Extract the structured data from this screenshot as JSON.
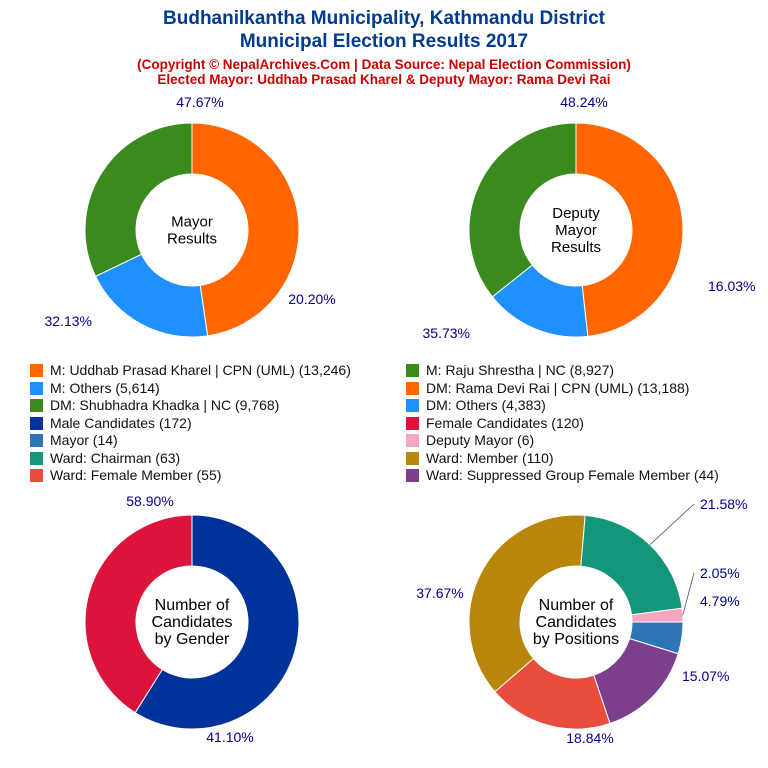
{
  "header": {
    "title_line1": "Budhanilkantha Municipality, Kathmandu District",
    "title_line2": "Municipal Election Results 2017",
    "subtitle_line1": "(Copyright © NepalArchives.Com | Data Source: Nepal Election Commission)",
    "subtitle_line2": "Elected Mayor: Uddhab Prasad Kharel & Deputy Mayor: Rama Devi Rai"
  },
  "colors": {
    "orange": "#ff6600",
    "blue": "#1e90ff",
    "green": "#3a8a1e",
    "navy": "#003399",
    "crimson": "#dc143c",
    "steel": "#2e75b6",
    "pink": "#f4a6c0",
    "teal": "#14967a",
    "goldenrod": "#b8860b",
    "tomato": "#e74c3c",
    "purple": "#7b3f8e",
    "label": "#00008b"
  },
  "legend": [
    {
      "label": "M: Uddhab Prasad Kharel | CPN (UML) (13,246)",
      "color": "#ff6600"
    },
    {
      "label": "M: Raju Shrestha | NC (8,927)",
      "color": "#3a8a1e"
    },
    {
      "label": "M: Others (5,614)",
      "color": "#1e90ff"
    },
    {
      "label": "DM: Rama Devi Rai | CPN (UML) (13,188)",
      "color": "#ff6600"
    },
    {
      "label": "DM: Shubhadra Khadka | NC (9,768)",
      "color": "#3a8a1e"
    },
    {
      "label": "DM: Others (4,383)",
      "color": "#1e90ff"
    },
    {
      "label": "Male Candidates (172)",
      "color": "#003399"
    },
    {
      "label": "Female Candidates (120)",
      "color": "#dc143c"
    },
    {
      "label": "Mayor (14)",
      "color": "#2e75b6"
    },
    {
      "label": "Deputy Mayor (6)",
      "color": "#f4a6c0"
    },
    {
      "label": "Ward: Chairman (63)",
      "color": "#14967a"
    },
    {
      "label": "Ward: Member (110)",
      "color": "#b8860b"
    },
    {
      "label": "Ward: Female Member (55)",
      "color": "#e74c3c"
    },
    {
      "label": "Ward: Suppressed Group Female Member (44)",
      "color": "#7b3f8e"
    }
  ],
  "chart_data": [
    {
      "type": "pie",
      "center_label": [
        "Mayor",
        "Results"
      ],
      "slices": [
        {
          "name": "M: Uddhab Prasad Kharel | CPN (UML)",
          "value": 13246,
          "label": "47.67%",
          "color": "#ff6600"
        },
        {
          "name": "M: Others",
          "value": 5614,
          "label": "20.20%",
          "color": "#1e90ff"
        },
        {
          "name": "M: Raju Shrestha | NC",
          "value": 8927,
          "label": "32.13%",
          "color": "#3a8a1e"
        }
      ]
    },
    {
      "type": "pie",
      "center_label": [
        "Deputy",
        "Mayor",
        "Results"
      ],
      "slices": [
        {
          "name": "DM: Rama Devi Rai | CPN (UML)",
          "value": 13188,
          "label": "48.24%",
          "color": "#ff6600"
        },
        {
          "name": "DM: Others",
          "value": 4383,
          "label": "16.03%",
          "color": "#1e90ff"
        },
        {
          "name": "DM: Shubhadra Khadka | NC",
          "value": 9768,
          "label": "35.73%",
          "color": "#3a8a1e"
        }
      ]
    },
    {
      "type": "pie",
      "center_label": [
        "Number of",
        "Candidates",
        "by Gender"
      ],
      "slices": [
        {
          "name": "Male Candidates",
          "value": 172,
          "label": "58.90%",
          "color": "#003399"
        },
        {
          "name": "Female Candidates",
          "value": 120,
          "label": "41.10%",
          "color": "#dc143c"
        }
      ]
    },
    {
      "type": "pie",
      "center_label": [
        "Number of",
        "Candidates",
        "by Positions"
      ],
      "slices": [
        {
          "name": "Mayor",
          "value": 14,
          "label": "4.79%",
          "color": "#2e75b6"
        },
        {
          "name": "Ward: Suppressed Group Female Member",
          "value": 44,
          "label": "15.07%",
          "color": "#7b3f8e"
        },
        {
          "name": "Ward: Female Member",
          "value": 55,
          "label": "18.84%",
          "color": "#e74c3c"
        },
        {
          "name": "Ward: Member",
          "value": 110,
          "label": "37.67%",
          "color": "#b8860b"
        },
        {
          "name": "Ward: Chairman",
          "value": 63,
          "label": "21.58%",
          "color": "#14967a"
        },
        {
          "name": "Deputy Mayor",
          "value": 6,
          "label": "2.05%",
          "color": "#f4a6c0"
        }
      ]
    }
  ]
}
